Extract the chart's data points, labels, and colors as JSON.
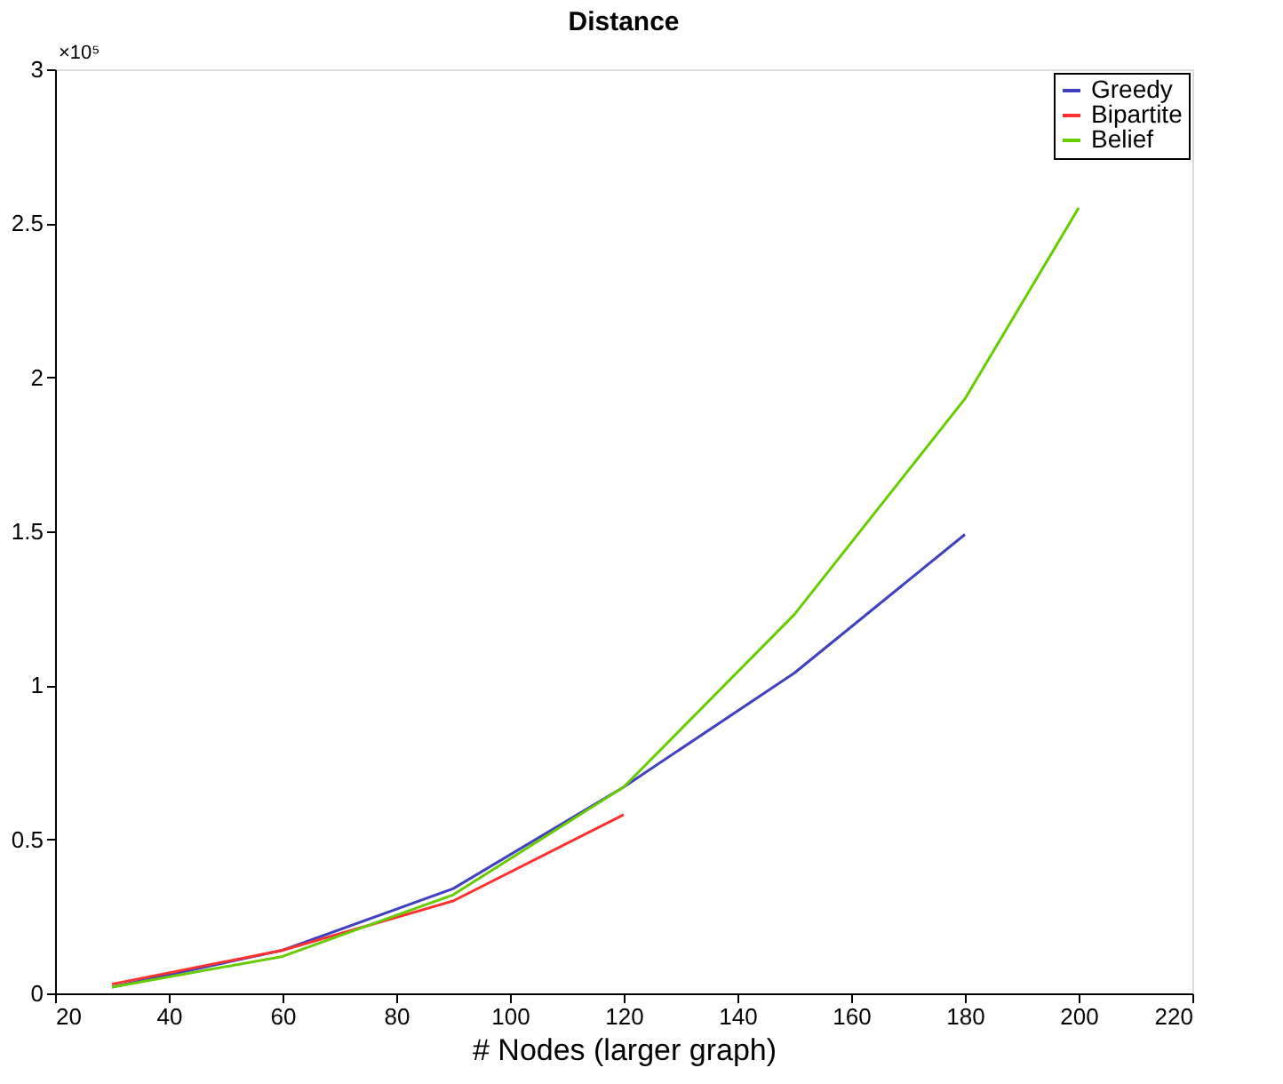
{
  "chart_data": {
    "type": "line",
    "title": "Distance",
    "xlabel": "# Nodes (larger graph)",
    "annotations": [
      "×10⁵"
    ],
    "x": [
      30,
      60,
      90,
      120,
      150,
      180,
      200
    ],
    "xlim": [
      20,
      220
    ],
    "xticks": [
      20,
      40,
      60,
      80,
      100,
      120,
      140,
      160,
      180,
      200,
      220
    ],
    "ylim": [
      0,
      3
    ],
    "yticks": [
      0,
      0.5,
      1,
      1.5,
      2,
      2.5,
      3
    ],
    "grid": false,
    "legend": "top right",
    "series": [
      {
        "name": "Greedy",
        "color": "#4040c0",
        "values": [
          0.02,
          0.14,
          0.34,
          0.67,
          1.04,
          1.49,
          null
        ]
      },
      {
        "name": "Bipartite",
        "color": "#ff3030",
        "values": [
          0.03,
          0.14,
          0.3,
          0.58,
          null,
          null,
          null
        ]
      },
      {
        "name": "Belief",
        "color": "#66cc00",
        "values": [
          0.02,
          0.12,
          0.32,
          0.67,
          1.23,
          1.93,
          2.55
        ]
      }
    ]
  }
}
